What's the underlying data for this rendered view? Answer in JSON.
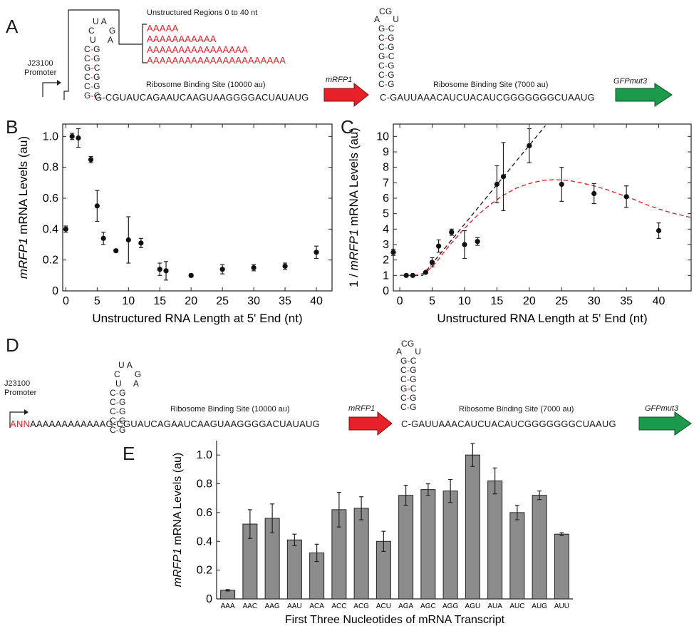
{
  "panels": {
    "A": "A",
    "B": "B",
    "C": "C",
    "D": "D",
    "E": "E"
  },
  "construct_a": {
    "unstructured_title": "Unstructured Regions 0 to 40 nt",
    "unstructured_seqs": [
      "AAAAA",
      "AAAAAAAAAAA",
      "AAAAAAAAAAAAAAAA",
      "AAAAAAAAAAAAAAAAAAAAAA"
    ],
    "promoter": "J23100",
    "promoter2": "Promoter",
    "hairpin1_loop_top": "U A",
    "hairpin1_loop_left": [
      "C",
      "U"
    ],
    "hairpin1_loop_right": [
      "G",
      "A"
    ],
    "hairpin1_stem": [
      [
        "C",
        "G"
      ],
      [
        "C",
        "G"
      ],
      [
        "G",
        "C"
      ],
      [
        "C",
        "G"
      ],
      [
        "C",
        "G"
      ],
      [
        "G",
        "C"
      ]
    ],
    "rbs1_label": "Ribosome Binding Site (10000 au)",
    "rbs1_seq": "GUAUCAGAAUCAAGUAAGGGGACUAUAUG",
    "gene1": "mRFP1",
    "hairpin2_loop_top": "CG",
    "hairpin2_loop_a": "A",
    "hairpin2_loop_u": "U",
    "hairpin2_stem": [
      [
        "G",
        "C"
      ],
      [
        "C",
        "G"
      ],
      [
        "C",
        "G"
      ],
      [
        "G",
        "C"
      ],
      [
        "C",
        "G"
      ],
      [
        "C",
        "G"
      ],
      [
        "C",
        "G"
      ]
    ],
    "rbs2_label": "Ribosome Binding Site (7000  au)",
    "rbs2_seq": "GAUUAAACAUCUACAUCGGGGGGGCUAAUG",
    "gene2": "GFPmut3"
  },
  "construct_d": {
    "promoter": "J23100",
    "promoter2": "Promoter",
    "lead_red": "ANN",
    "lead_rest": "AAAAAAAAAAAAG",
    "hairpin1_loop_top": "U A",
    "hairpin1_loop_left": [
      "C",
      "U"
    ],
    "hairpin1_loop_right": [
      "G",
      "A"
    ],
    "hairpin1_stem": [
      [
        "C",
        "G"
      ],
      [
        "C",
        "G"
      ],
      [
        "C",
        "G"
      ],
      [
        "C",
        "G"
      ],
      [
        "C",
        "G"
      ]
    ],
    "rbs1_label": "Ribosome Binding Site (10000 au)",
    "rbs1_seq": "CGUAUCAGAAUCAAGUAAGGGGACUAUAUG",
    "gene1": "mRFP1",
    "hairpin2_loop_top": "CG",
    "hairpin2_loop_a": "A",
    "hairpin2_loop_u": "U",
    "hairpin2_stem": [
      [
        "G",
        "C"
      ],
      [
        "C",
        "G"
      ],
      [
        "C",
        "G"
      ],
      [
        "G",
        "C"
      ],
      [
        "C",
        "G"
      ],
      [
        "C",
        "G"
      ]
    ],
    "rbs2_label": "Ribosome Binding Site (7000 au)",
    "rbs2_seq": "GAUUAAACAUCUACAUCGGGGGGGCUAAUG",
    "gene2": "GFPmut3"
  },
  "chart_data": [
    {
      "id": "B",
      "type": "scatter",
      "ylabel_italic": "mRFP1",
      "ylabel_rest": " mRNA Levels (au)",
      "xlabel": "Unstructured RNA Length at 5' End (nt)",
      "xlim": [
        -0.5,
        42.5
      ],
      "ylim": [
        0,
        1.08
      ],
      "xticks": [
        0,
        5,
        10,
        15,
        20,
        25,
        30,
        35,
        40
      ],
      "yticks": [
        0,
        0.2,
        0.4,
        0.6,
        0.8,
        1.0
      ],
      "ytick_labels": [
        "0",
        "0.2",
        "0.4",
        "0.6",
        "0.8",
        "1.0"
      ],
      "points": [
        {
          "x": 0,
          "y": 0.4,
          "err": 0.02
        },
        {
          "x": 1,
          "y": 1.0,
          "err": 0.02
        },
        {
          "x": 2,
          "y": 0.99,
          "err": 0.06
        },
        {
          "x": 4,
          "y": 0.85,
          "err": 0.02
        },
        {
          "x": 5,
          "y": 0.55,
          "err": 0.1
        },
        {
          "x": 6,
          "y": 0.34,
          "err": 0.04
        },
        {
          "x": 8,
          "y": 0.26,
          "err": 0.01
        },
        {
          "x": 10,
          "y": 0.33,
          "err": 0.15
        },
        {
          "x": 12,
          "y": 0.31,
          "err": 0.03
        },
        {
          "x": 15,
          "y": 0.14,
          "err": 0.04
        },
        {
          "x": 16,
          "y": 0.13,
          "err": 0.06
        },
        {
          "x": 20,
          "y": 0.1,
          "err": 0.01
        },
        {
          "x": 25,
          "y": 0.14,
          "err": 0.03
        },
        {
          "x": 30,
          "y": 0.15,
          "err": 0.02
        },
        {
          "x": 35,
          "y": 0.16,
          "err": 0.02
        },
        {
          "x": 40,
          "y": 0.25,
          "err": 0.04
        }
      ]
    },
    {
      "id": "C",
      "type": "scatter",
      "ylabel_pre": "1 / ",
      "ylabel_italic": "mRFP1",
      "ylabel_rest": " mRNA Levels (au)",
      "xlabel": "Unstructured RNA Length at 5' End (nt)",
      "xlim": [
        -1,
        45
      ],
      "ylim": [
        0,
        10.8
      ],
      "xticks": [
        0,
        5,
        10,
        15,
        20,
        25,
        30,
        35,
        40
      ],
      "yticks": [
        0,
        1,
        2,
        3,
        4,
        5,
        6,
        7,
        8,
        9,
        10
      ],
      "points": [
        {
          "x": -1,
          "y": 2.5,
          "err": 0.2
        },
        {
          "x": 1,
          "y": 1.0,
          "err": 0.05
        },
        {
          "x": 2,
          "y": 1.0,
          "err": 0.05
        },
        {
          "x": 4,
          "y": 1.2,
          "err": 0.05
        },
        {
          "x": 5,
          "y": 1.85,
          "err": 0.3
        },
        {
          "x": 6,
          "y": 2.9,
          "err": 0.4
        },
        {
          "x": 8,
          "y": 3.8,
          "err": 0.2
        },
        {
          "x": 10,
          "y": 3.0,
          "err": 0.9
        },
        {
          "x": 12,
          "y": 3.2,
          "err": 0.25
        },
        {
          "x": 15,
          "y": 6.9,
          "err": 1.2
        },
        {
          "x": 16,
          "y": 7.4,
          "err": 2.2
        },
        {
          "x": 20,
          "y": 9.4,
          "err": 1.1
        },
        {
          "x": 25,
          "y": 6.9,
          "err": 1.1
        },
        {
          "x": 30,
          "y": 6.3,
          "err": 0.65
        },
        {
          "x": 35,
          "y": 6.1,
          "err": 0.7
        },
        {
          "x": 40,
          "y": 3.9,
          "err": 0.5
        }
      ],
      "fit_linear": {
        "color": "#222222",
        "x": [
          0,
          3.5,
          22.5
        ],
        "y": [
          1.0,
          1.0,
          10.7
        ]
      },
      "fit_curve": {
        "color": "#e8202a",
        "x": [
          0,
          1,
          2,
          3,
          4,
          5,
          6,
          7,
          8,
          10,
          12,
          14,
          16,
          18,
          20,
          22,
          24,
          26,
          28,
          30,
          32,
          34,
          36,
          38,
          40,
          42,
          45
        ],
        "y": [
          1.0,
          1.0,
          1.0,
          1.05,
          1.2,
          1.55,
          2.05,
          2.6,
          3.1,
          4.05,
          4.9,
          5.6,
          6.2,
          6.65,
          6.95,
          7.15,
          7.2,
          7.15,
          7.0,
          6.8,
          6.55,
          6.25,
          5.95,
          5.6,
          5.3,
          5.05,
          4.75
        ]
      }
    },
    {
      "id": "E",
      "type": "bar",
      "ylabel_italic": "mRFP1",
      "ylabel_rest": " mRNA Levels (au)",
      "xlabel": "First Three Nucleotides of mRNA Transcript",
      "ylim": [
        0,
        1.1
      ],
      "yticks": [
        0,
        0.2,
        0.4,
        0.6,
        0.8,
        1.0
      ],
      "ytick_labels": [
        "0",
        "0.2",
        "0.4",
        "0.6",
        "0.8",
        "1.0"
      ],
      "bar_color": "#8c8c8c",
      "categories": [
        "AAA",
        "AAC",
        "AAG",
        "AAU",
        "ACA",
        "ACC",
        "ACG",
        "ACU",
        "AGA",
        "AGC",
        "AGG",
        "AGU",
        "AUA",
        "AUC",
        "AUG",
        "AUU"
      ],
      "values": [
        0.06,
        0.52,
        0.56,
        0.41,
        0.32,
        0.62,
        0.63,
        0.4,
        0.72,
        0.76,
        0.75,
        1.0,
        0.82,
        0.6,
        0.72,
        0.45
      ],
      "errors": [
        0.005,
        0.1,
        0.1,
        0.04,
        0.06,
        0.12,
        0.08,
        0.07,
        0.07,
        0.04,
        0.08,
        0.08,
        0.09,
        0.05,
        0.03,
        0.01
      ]
    }
  ]
}
